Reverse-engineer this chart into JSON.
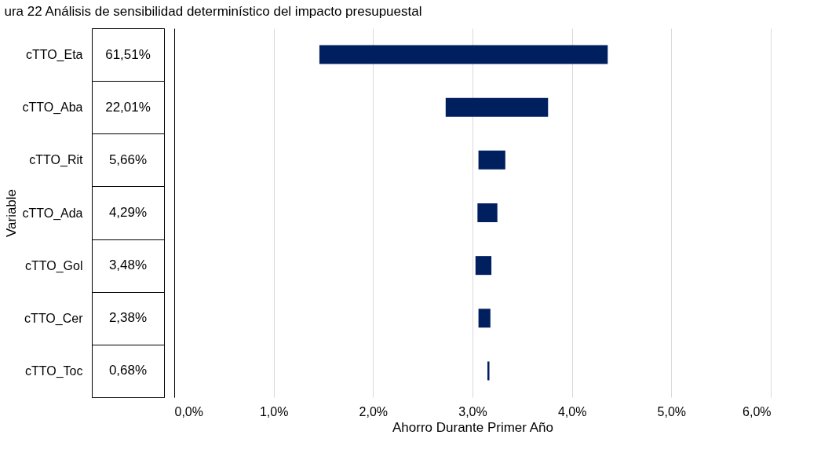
{
  "chart_data": {
    "type": "bar",
    "orientation": "horizontal",
    "title": "ura 22 Análisis de sensibilidad determinístico del impacto presupuestal",
    "xlabel": "Ahorro Durante Primer Año",
    "ylabel": "Variable",
    "categories": [
      "cTTO_Eta",
      "cTTO_Aba",
      "cTTO_Rit",
      "cTTO_Ada",
      "cTTO_Gol",
      "cTTO_Cer",
      "cTTO_Toc"
    ],
    "base": [
      1.46,
      2.73,
      3.06,
      3.05,
      3.03,
      3.06,
      3.15
    ],
    "values": [
      2.9,
      1.03,
      0.27,
      0.2,
      0.16,
      0.12,
      0.02
    ],
    "annotations": [
      "61,51%",
      "22,01%",
      "5,66%",
      "4,29%",
      "3,48%",
      "2,38%",
      "0,68%"
    ],
    "color": "#001f5f",
    "xlim": [
      0,
      6
    ],
    "xticks": [
      {
        "value": 0,
        "label": "0,0%"
      },
      {
        "value": 1,
        "label": "1,0%"
      },
      {
        "value": 2,
        "label": "2,0%"
      },
      {
        "value": 3,
        "label": "3,0%"
      },
      {
        "value": 4,
        "label": "4,0%"
      },
      {
        "value": 5,
        "label": "5,0%"
      },
      {
        "value": 6,
        "label": "6,0%"
      }
    ],
    "grid": "x"
  }
}
